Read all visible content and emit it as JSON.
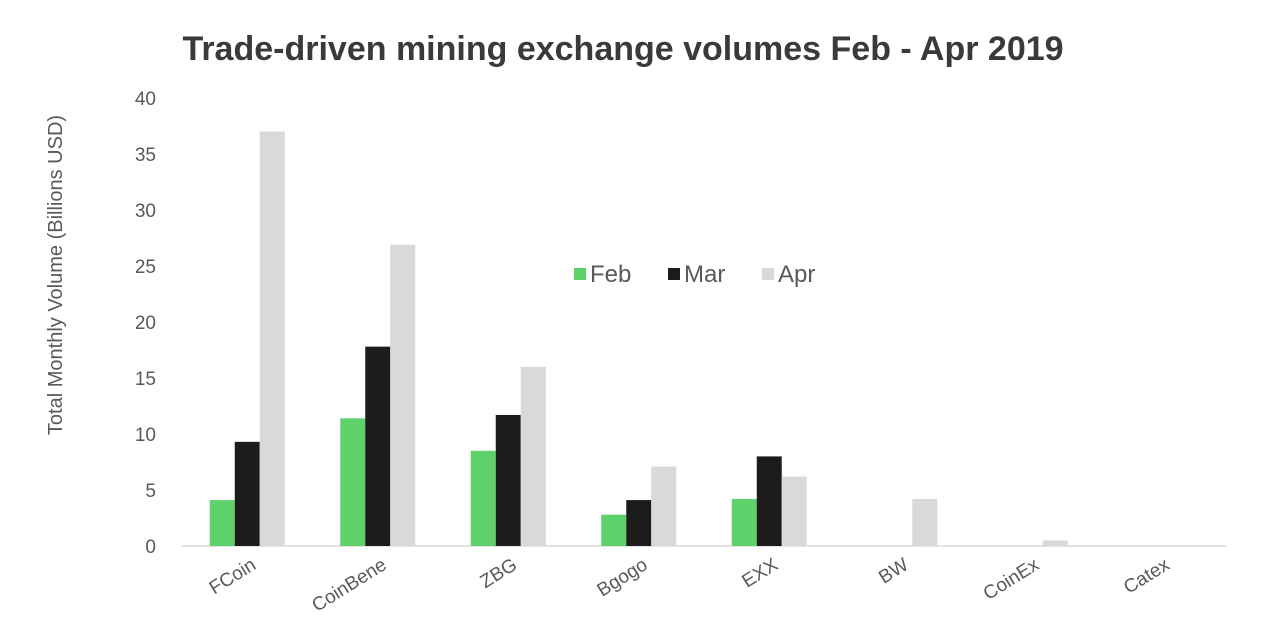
{
  "chart_data": {
    "type": "bar",
    "title": "Trade-driven mining exchange volumes Feb - Apr 2019",
    "xlabel": "",
    "ylabel": "Total Monthly Volume (Billions USD)",
    "ylim": [
      0,
      40
    ],
    "yticks": [
      0,
      5,
      10,
      15,
      20,
      25,
      30,
      35,
      40
    ],
    "grid": false,
    "legend_position": "center",
    "categories": [
      "FCoin",
      "CoinBene",
      "ZBG",
      "Bgogo",
      "EXX",
      "BW",
      "CoinEx",
      "Catex"
    ],
    "series": [
      {
        "name": "Feb",
        "color": "#5fd16b",
        "values": [
          4.1,
          11.4,
          8.5,
          2.8,
          4.2,
          0,
          0,
          0
        ]
      },
      {
        "name": "Mar",
        "color": "#1c1c1c",
        "values": [
          9.3,
          17.8,
          11.7,
          4.1,
          8.0,
          0,
          0,
          0
        ]
      },
      {
        "name": "Apr",
        "color": "#d9d9d9",
        "values": [
          37.0,
          26.9,
          16.0,
          7.1,
          6.2,
          4.2,
          0.5,
          0
        ]
      }
    ]
  }
}
